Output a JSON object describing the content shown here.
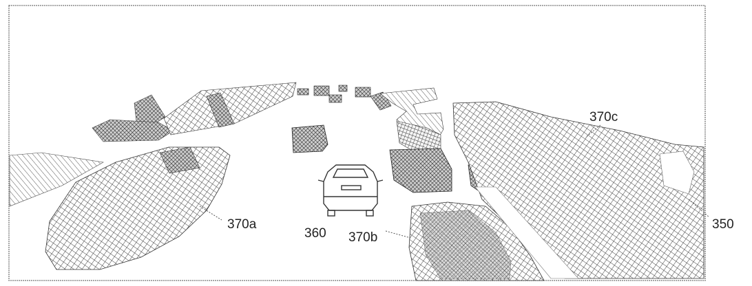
{
  "figure": {
    "labels": {
      "a": "370a",
      "b": "370b",
      "c": "370c",
      "ego": "360",
      "frame": "350"
    }
  }
}
